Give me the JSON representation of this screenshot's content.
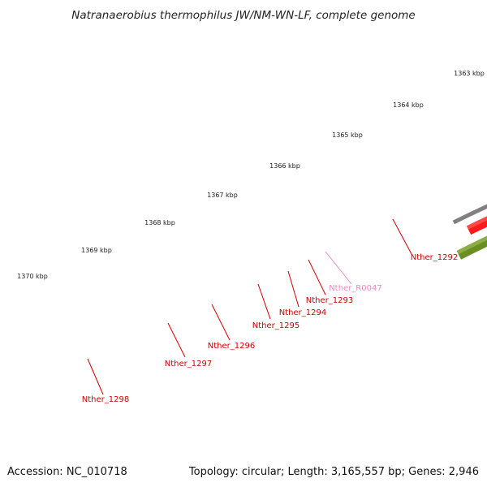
{
  "title": "Natranaerobius thermophilus JW/NM-WN-LF, complete genome",
  "footer": {
    "accession": "Accession: NC_010718",
    "topology": "Topology: circular; Length: 3,165,557 bp; Genes: 2,946"
  },
  "scale": {
    "unit": "kbp",
    "tick_labels": [
      "1363 kbp",
      "1364 kbp",
      "1365 kbp",
      "1366 kbp",
      "1367 kbp",
      "1368 kbp",
      "1369 kbp",
      "1370 kbp"
    ]
  },
  "genes": [
    {
      "name": "Nther_1292",
      "type": "CDS"
    },
    {
      "name": "Nther_R0047",
      "type": "rRNA"
    },
    {
      "name": "Nther_1293",
      "type": "CDS"
    },
    {
      "name": "Nther_1294",
      "type": "CDS"
    },
    {
      "name": "Nther_1295",
      "type": "CDS"
    },
    {
      "name": "Nther_1296",
      "type": "CDS"
    },
    {
      "name": "Nther_1297",
      "type": "CDS"
    },
    {
      "name": "Nther_1298",
      "type": "CDS"
    }
  ],
  "colors": {
    "backbone": "#808080",
    "cds_forward": "#ff1a1a",
    "cds_reverse_light": "#f08c8c",
    "pseudo_gray": "#707070",
    "rna_pink": "#f4a3d2",
    "olive": "#6b8e23",
    "tick_green": "#1e7a1e",
    "label_red": "#cc0000",
    "label_pink": "#e98ac0"
  }
}
